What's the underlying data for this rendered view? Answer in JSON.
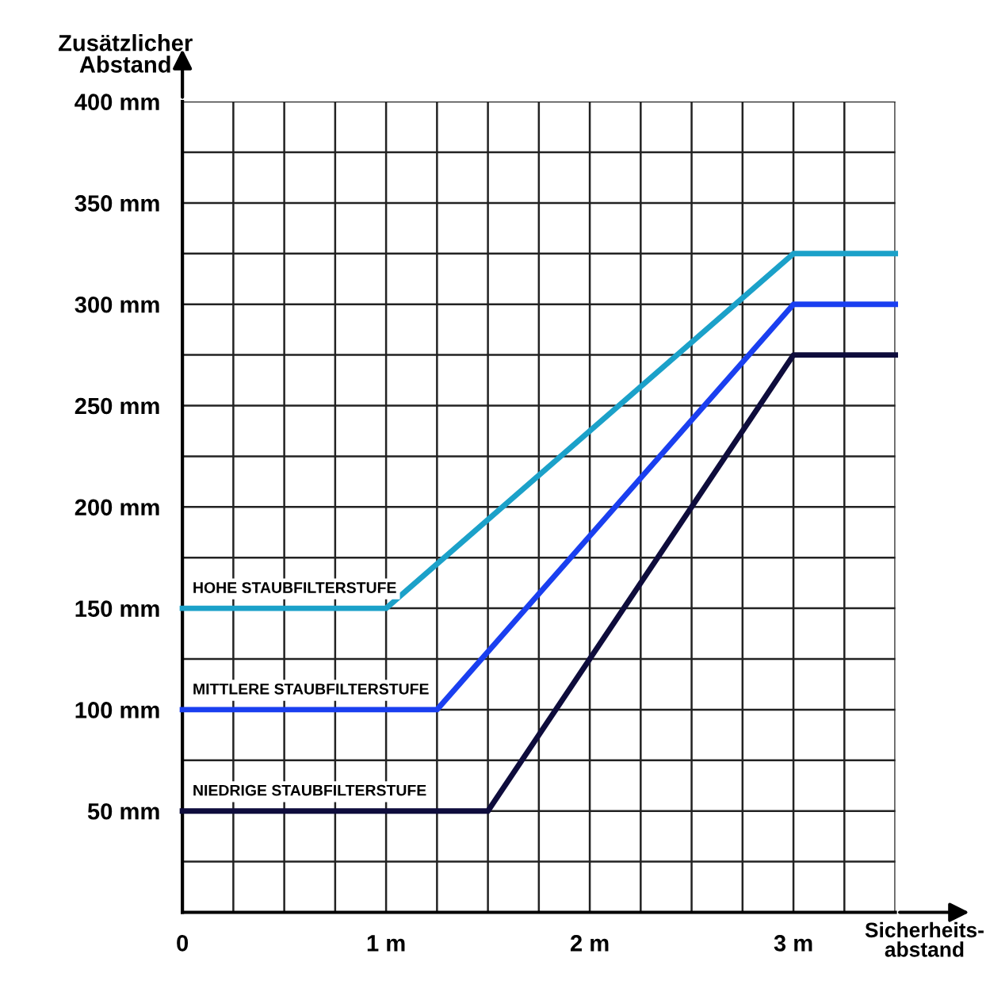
{
  "chart_data": {
    "type": "line",
    "xlabel": "Sicherheits-\nabstand",
    "ylabel": "Zusätzlicher\nAbstand",
    "xlim": [
      0,
      3.5
    ],
    "ylim": [
      0,
      400
    ],
    "xticks": [
      0,
      {
        "value": 0.25,
        "label": null
      },
      {
        "value": 0.5,
        "label": null
      },
      {
        "value": 0.75,
        "label": null
      },
      {
        "value": 1,
        "label": "1 m"
      },
      {
        "value": 1.25,
        "label": null
      },
      {
        "value": 1.5,
        "label": null
      },
      {
        "value": 1.75,
        "label": null
      },
      {
        "value": 2,
        "label": "2 m"
      },
      {
        "value": 2.25,
        "label": null
      },
      {
        "value": 2.5,
        "label": null
      },
      {
        "value": 2.75,
        "label": null
      },
      {
        "value": 3,
        "label": "3 m"
      },
      {
        "value": 3.25,
        "label": null
      },
      {
        "value": 3.5,
        "label": null
      }
    ],
    "yticks": [
      {
        "value": 25,
        "label": null
      },
      {
        "value": 50,
        "label": "50 mm"
      },
      {
        "value": 75,
        "label": null
      },
      {
        "value": 100,
        "label": "100 mm"
      },
      {
        "value": 125,
        "label": null
      },
      {
        "value": 150,
        "label": "150 mm"
      },
      {
        "value": 175,
        "label": null
      },
      {
        "value": 200,
        "label": "200 mm"
      },
      {
        "value": 225,
        "label": null
      },
      {
        "value": 250,
        "label": "250 mm"
      },
      {
        "value": 275,
        "label": null
      },
      {
        "value": 300,
        "label": "300 mm"
      },
      {
        "value": 325,
        "label": null
      },
      {
        "value": 350,
        "label": "350 mm"
      },
      {
        "value": 375,
        "label": null
      },
      {
        "value": 400,
        "label": "400 mm"
      }
    ],
    "grid": true,
    "marker": "none",
    "line_style": "solid",
    "legend": false,
    "series": [
      {
        "name": "HOHE STAUBFILTERSTUFE",
        "color": "#1ba1c9",
        "x": [
          0,
          1,
          3,
          3.5
        ],
        "values": [
          150,
          150,
          325,
          325
        ]
      },
      {
        "name": "MITTLERE STAUBFILTERSTUFE",
        "color": "#1a3ff0",
        "x": [
          0,
          1.25,
          3,
          3.5
        ],
        "values": [
          100,
          100,
          300,
          300
        ]
      },
      {
        "name": "NIEDRIGE STAUBFILTERSTUFE",
        "color": "#0e0c3c",
        "x": [
          0,
          1.5,
          3,
          3.5
        ],
        "values": [
          50,
          50,
          275,
          275
        ]
      }
    ]
  }
}
